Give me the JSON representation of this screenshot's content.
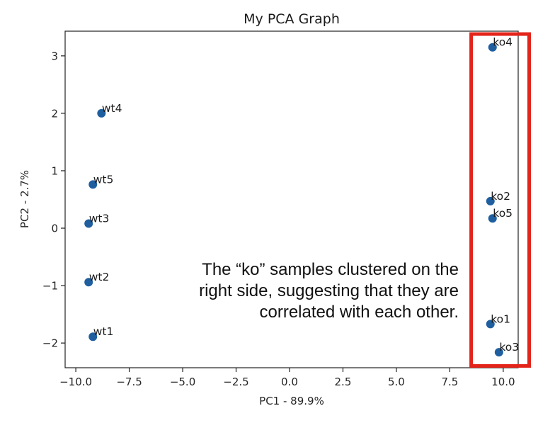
{
  "chart_data": {
    "type": "scatter",
    "title": "My PCA Graph",
    "xlabel": "PC1 - 89.9%",
    "ylabel": "PC2 - 2.7%",
    "xlim": [
      -10.5,
      10.7
    ],
    "ylim": [
      -2.43,
      3.43
    ],
    "x_ticks": [
      -10.0,
      -7.5,
      -5.0,
      -2.5,
      0.0,
      2.5,
      5.0,
      7.5,
      10.0
    ],
    "x_tick_labels": [
      "−10.0",
      "−7.5",
      "−5.0",
      "−2.5",
      "0.0",
      "2.5",
      "5.0",
      "7.5",
      "10.0"
    ],
    "y_ticks": [
      -2,
      -1,
      0,
      1,
      2,
      3
    ],
    "y_tick_labels": [
      "−2",
      "−1",
      "0",
      "1",
      "2",
      "3"
    ],
    "points": [
      {
        "label": "wt1",
        "x": -9.2,
        "y": -1.89
      },
      {
        "label": "wt2",
        "x": -9.4,
        "y": -0.94
      },
      {
        "label": "wt3",
        "x": -9.4,
        "y": 0.08
      },
      {
        "label": "wt4",
        "x": -8.8,
        "y": 2.0
      },
      {
        "label": "wt5",
        "x": -9.2,
        "y": 0.76
      },
      {
        "label": "ko1",
        "x": 9.4,
        "y": -1.67
      },
      {
        "label": "ko2",
        "x": 9.4,
        "y": 0.47
      },
      {
        "label": "ko3",
        "x": 9.8,
        "y": -2.16
      },
      {
        "label": "ko4",
        "x": 9.5,
        "y": 3.15
      },
      {
        "label": "ko5",
        "x": 9.5,
        "y": 0.17
      }
    ],
    "marker_color": "#1f5fa0",
    "highlight_box": {
      "x_range": [
        8.5,
        10.65
      ],
      "y_range": [
        -2.3,
        3.38
      ],
      "color": "#e3241b"
    },
    "annotation": {
      "lines": [
        "The “ko” samples clustered on the",
        "right side, suggesting that they are",
        "correlated with each other."
      ]
    }
  }
}
